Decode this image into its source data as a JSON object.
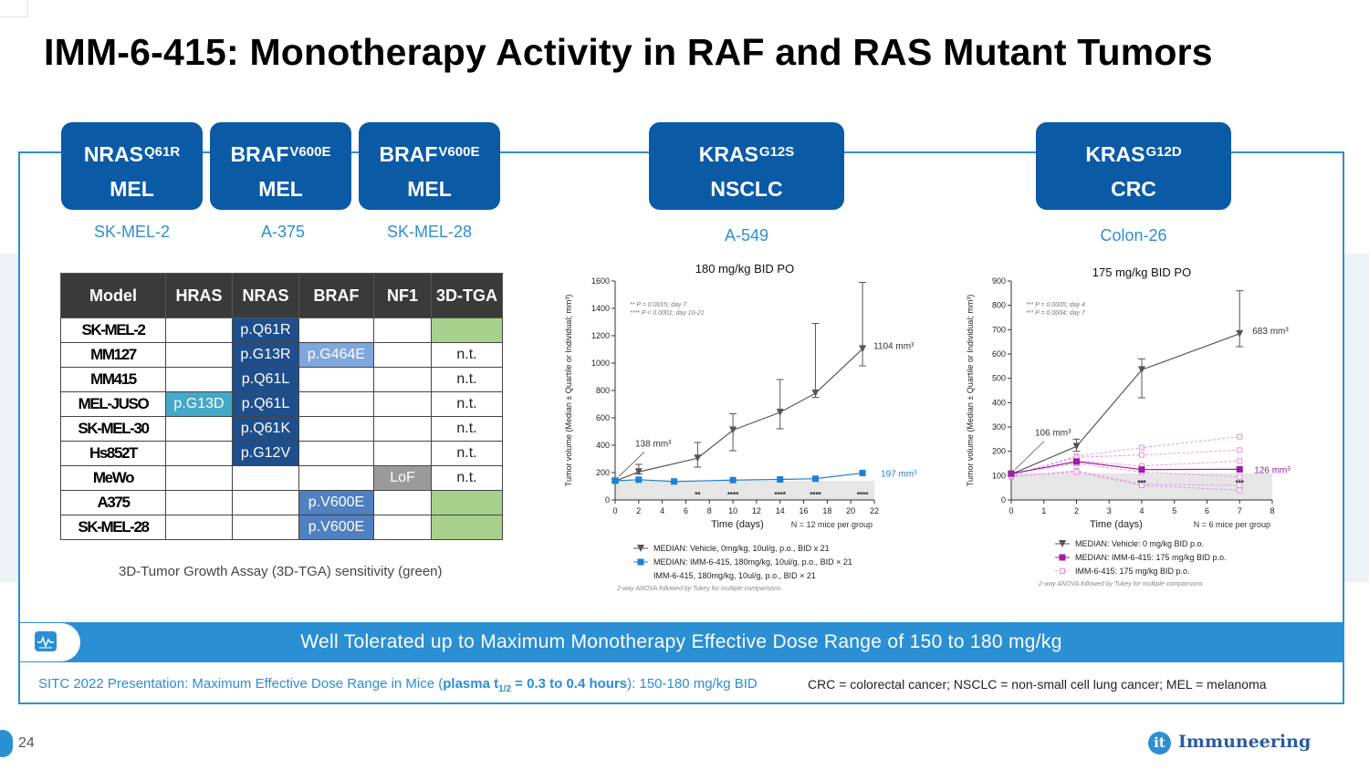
{
  "title": "IMM-6-415: Monotherapy Activity in RAF and RAS Mutant Tumors",
  "tiles": [
    {
      "gene": "NRAS",
      "mut": "Q61R",
      "type": "MEL",
      "cell_line": "SK-MEL-2"
    },
    {
      "gene": "BRAF",
      "mut": "V600E",
      "type": "MEL",
      "cell_line": "A-375"
    },
    {
      "gene": "BRAF",
      "mut": "V600E",
      "type": "MEL",
      "cell_line": "SK-MEL-28"
    },
    {
      "gene": "KRAS",
      "mut": "G12S",
      "type": "NSCLC",
      "cell_line": "A-549"
    },
    {
      "gene": "KRAS",
      "mut": "G12D",
      "type": "CRC",
      "cell_line": "Colon-26"
    }
  ],
  "table": {
    "headers": [
      "Model",
      "HRAS",
      "NRAS",
      "BRAF",
      "NF1",
      "3D-TGA"
    ],
    "rows": [
      {
        "model": "SK-MEL-2",
        "hras": "",
        "nras": "p.Q61R",
        "braf": "",
        "nf1": "",
        "tga": ""
      },
      {
        "model": "MM127",
        "hras": "",
        "nras": "p.G13R",
        "braf": "p.G464E",
        "nf1": "",
        "tga": "n.t."
      },
      {
        "model": "MM415",
        "hras": "",
        "nras": "p.Q61L",
        "braf": "",
        "nf1": "",
        "tga": "n.t."
      },
      {
        "model": "MEL-JUSO",
        "hras": "p.G13D",
        "nras": "p.Q61L",
        "braf": "",
        "nf1": "",
        "tga": "n.t."
      },
      {
        "model": "SK-MEL-30",
        "hras": "",
        "nras": "p.Q61K",
        "braf": "",
        "nf1": "",
        "tga": "n.t."
      },
      {
        "model": "Hs852T",
        "hras": "",
        "nras": "p.G12V",
        "braf": "",
        "nf1": "",
        "tga": "n.t."
      },
      {
        "model": "MeWo",
        "hras": "",
        "nras": "",
        "braf": "",
        "nf1": "LoF",
        "tga": "n.t."
      },
      {
        "model": "A375",
        "hras": "",
        "nras": "",
        "braf": "p.V600E",
        "nf1": "",
        "tga": ""
      },
      {
        "model": "SK-MEL-28",
        "hras": "",
        "nras": "",
        "braf": "p.V600E",
        "nf1": "",
        "tga": ""
      }
    ],
    "caption": "3D-Tumor Growth Assay (3D-TGA) sensitivity (green)"
  },
  "chart_data": [
    {
      "type": "line",
      "title": "180 mg/kg BID PO",
      "xlabel": "Time (days)",
      "ylabel": "Tumor volume (Median ± Quartile or Individual; mm³)",
      "xlim": [
        0,
        22
      ],
      "ylim": [
        0,
        1600
      ],
      "xticks": [
        0,
        2,
        4,
        6,
        8,
        10,
        12,
        14,
        16,
        18,
        20,
        22
      ],
      "yticks": [
        0,
        200,
        400,
        600,
        800,
        1000,
        1200,
        1400,
        1600
      ],
      "series": [
        {
          "name": "MEDIAN: Vehicle, 0mg/kg, 10ul/g, p.o., BID x 21",
          "color": "#555555",
          "marker": "triangle-down",
          "x": [
            0,
            2,
            7,
            10,
            14,
            17,
            21
          ],
          "y": [
            138,
            205,
            305,
            510,
            640,
            780,
            1104
          ],
          "err_low": [
            130,
            190,
            240,
            360,
            520,
            750,
            980
          ],
          "err_high": [
            150,
            260,
            420,
            630,
            880,
            1290,
            1590
          ]
        },
        {
          "name": "MEDIAN: IMM-6-415, 180mg/kg, 10ul/g, p.o., BID × 21",
          "color": "#1e7fd6",
          "marker": "square",
          "x": [
            0,
            2,
            5,
            10,
            14,
            17,
            21
          ],
          "y": [
            140,
            148,
            135,
            145,
            150,
            155,
            197
          ]
        },
        {
          "name": "IMM-6-415, 180mg/kg, 10ul/g, p.o., BID × 21",
          "color": "#9a9a9a",
          "marker": "none",
          "x": [],
          "y": []
        }
      ],
      "annotations": {
        "stats_note": [
          "** P = 0.0015; day 7",
          "**** P < 0.0001; day 10-21"
        ],
        "start_label": "138 mm³",
        "end_vehicle": "1104 mm³",
        "end_treated": "197 mm³",
        "stars": [
          {
            "x": 7,
            "text": "**"
          },
          {
            "x": 10,
            "text": "****"
          },
          {
            "x": 14,
            "text": "****"
          },
          {
            "x": 17,
            "text": "****"
          },
          {
            "x": 21,
            "text": "****"
          }
        ],
        "n_note": "N = 12 mice per group",
        "method": "2-way ANOVA followed by Tukey for multiple comparisons"
      }
    },
    {
      "type": "line",
      "title": "175 mg/kg BID PO",
      "xlabel": "Time (days)",
      "ylabel": "Tumor volume (Median ± Quartile or Individual; mm³)",
      "xlim": [
        0,
        8
      ],
      "ylim": [
        0,
        900
      ],
      "xticks": [
        0,
        1,
        2,
        3,
        4,
        5,
        6,
        7,
        8
      ],
      "yticks": [
        0,
        100,
        200,
        300,
        400,
        500,
        600,
        700,
        800,
        900
      ],
      "series": [
        {
          "name": "MEDIAN: Vehicle: 0 mg/kg BID p.o.",
          "color": "#555555",
          "marker": "triangle-down",
          "x": [
            0,
            2,
            4,
            7
          ],
          "y": [
            106,
            220,
            535,
            683
          ],
          "err_low": [
            100,
            200,
            420,
            630
          ],
          "err_high": [
            112,
            250,
            580,
            860
          ]
        },
        {
          "name": "MEDIAN: IMM-6-415: 175 mg/kg BID p.o.",
          "color": "#9b1fa0",
          "marker": "square",
          "x": [
            0,
            2,
            4,
            7
          ],
          "y": [
            108,
            158,
            125,
            126
          ]
        },
        {
          "name": "IMM-6-415: 175 mg/kg BID p.o.",
          "color": "#e98de8",
          "marker": "open-square",
          "individuals": [
            {
              "x": [
                0,
                2,
                4,
                7
              ],
              "y": [
                100,
                180,
                215,
                260
              ]
            },
            {
              "x": [
                0,
                2,
                4,
                7
              ],
              "y": [
                102,
                175,
                185,
                205
              ]
            },
            {
              "x": [
                0,
                2,
                4,
                7
              ],
              "y": [
                105,
                160,
                140,
                160
              ]
            },
            {
              "x": [
                0,
                2,
                4,
                7
              ],
              "y": [
                110,
                150,
                115,
                95
              ]
            },
            {
              "x": [
                0,
                2,
                4,
                7
              ],
              "y": [
                95,
                120,
                65,
                60
              ]
            },
            {
              "x": [
                0,
                2,
                4,
                7
              ],
              "y": [
                98,
                115,
                60,
                40
              ]
            }
          ]
        }
      ],
      "annotations": {
        "stats_note": [
          "*** P = 0.0005; day 4",
          "*** P = 0.0004; day 7"
        ],
        "start_label": "106 mm³",
        "end_vehicle": "683 mm³",
        "end_treated": "126 mm³",
        "stars": [
          {
            "x": 4,
            "text": "***"
          },
          {
            "x": 7,
            "text": "***"
          }
        ],
        "n_note": "N = 6 mice per group",
        "method": "2-way ANOVA followed by Tukey for multiple comparisons"
      }
    }
  ],
  "banner": "Well Tolerated up to Maximum Monotherapy Effective Dose Range of 150 to 180 mg/kg",
  "footnote": {
    "prefix": "SITC 2022 Presentation: Maximum Effective Dose Range in Mice (",
    "bold_a": "plasma t",
    "bold_sub": "1/2",
    "bold_b": " = 0.3 to 0.4 hours",
    "suffix": "): 150-180 mg/kg BID"
  },
  "abbreviations": "CRC = colorectal cancer; NSCLC = non-small cell lung cancer; MEL = melanoma",
  "page_number": "24",
  "logo": {
    "mark": "it",
    "text": "Immuneering"
  },
  "colors": {
    "brand_blue": "#0b5aa6",
    "accent": "#2a8fd3",
    "green": "#a8d08d"
  }
}
